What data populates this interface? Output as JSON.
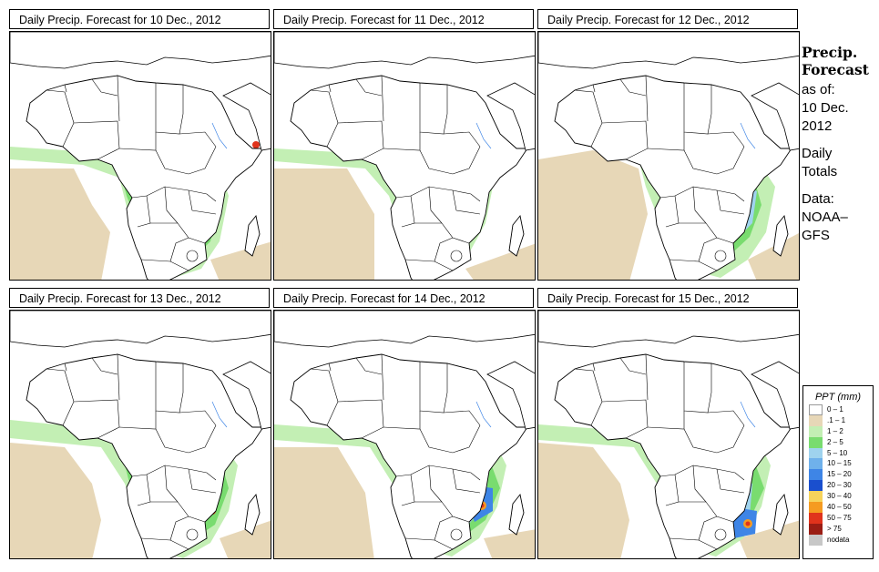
{
  "panels": [
    {
      "title": "Daily Precip. Forecast for  10 Dec., 2012"
    },
    {
      "title": "Daily Precip. Forecast for  11 Dec., 2012"
    },
    {
      "title": "Daily Precip. Forecast for  12 Dec., 2012"
    },
    {
      "title": "Daily Precip. Forecast for  13 Dec., 2012"
    },
    {
      "title": "Daily Precip. Forecast for  14 Dec., 2012"
    },
    {
      "title": "Daily Precip. Forecast for  15 Dec., 2012"
    }
  ],
  "side": {
    "heading_line1": "Precip.",
    "heading_line2": "Forecast",
    "asof_label": "as of:",
    "asof_date_line1": "10 Dec.",
    "asof_date_line2": "2012",
    "totals_line1": "Daily",
    "totals_line2": "Totals",
    "data_line1": "Data:",
    "data_line2": "NOAA–",
    "data_line3": "GFS"
  },
  "legend": {
    "title": "PPT (mm)",
    "items": [
      {
        "label": "0 – 1",
        "color": "#ffffff"
      },
      {
        "label": ".1 – 1",
        "color": "#e7d7b7"
      },
      {
        "label": "1 – 2",
        "color": "#c3efb4"
      },
      {
        "label": "2 – 5",
        "color": "#79dc6f"
      },
      {
        "label": "5 – 10",
        "color": "#9fd3ee"
      },
      {
        "label": "10 – 15",
        "color": "#6fb1eb"
      },
      {
        "label": "15 – 20",
        "color": "#3e85e6"
      },
      {
        "label": "20 – 30",
        "color": "#1a4fce"
      },
      {
        "label": "30 – 40",
        "color": "#f6d35b"
      },
      {
        "label": "40 – 50",
        "color": "#f59b21"
      },
      {
        "label": "50 – 75",
        "color": "#e0331c"
      },
      {
        "label": "> 75",
        "color": "#9a1d14"
      },
      {
        "label": "nodata",
        "color": "#c7c7c7"
      }
    ]
  }
}
